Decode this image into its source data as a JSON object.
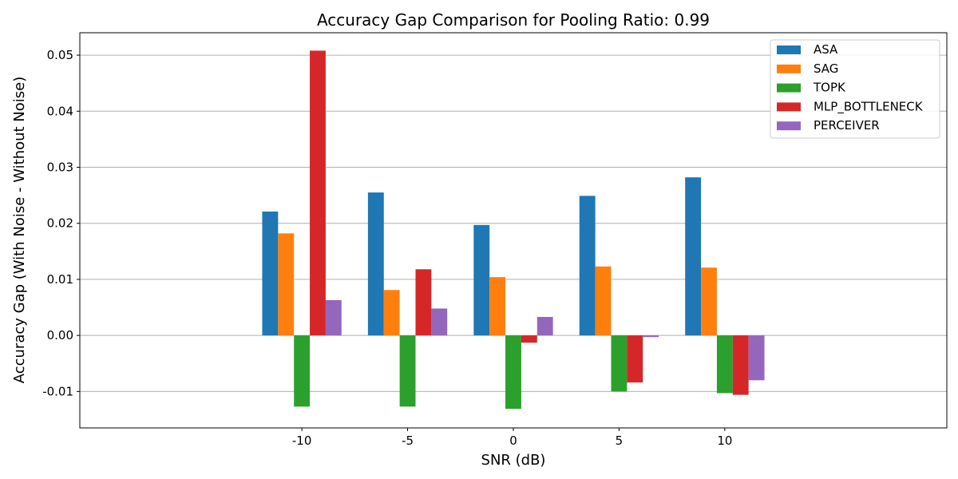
{
  "chart_data": {
    "type": "bar",
    "title": "Accuracy Gap Comparison for Pooling Ratio: 0.99",
    "xlabel": "SNR (dB)",
    "ylabel": "Accuracy Gap (With Noise - Without Noise)",
    "categories": [
      "-10",
      "-5",
      "0",
      "5",
      "10"
    ],
    "ylim": [
      -0.0165,
      0.054
    ],
    "yticks": [
      -0.01,
      0.0,
      0.01,
      0.02,
      0.03,
      0.04,
      0.05
    ],
    "ytick_labels": [
      "-0.01",
      "0.00",
      "0.01",
      "0.02",
      "0.03",
      "0.04",
      "0.05"
    ],
    "grid": "horizontal",
    "legend_position": "top-right",
    "series": [
      {
        "name": "ASA",
        "color": "#1f77b4",
        "values": [
          0.0221,
          0.0255,
          0.0197,
          0.0249,
          0.0282
        ]
      },
      {
        "name": "SAG",
        "color": "#ff7f0e",
        "values": [
          0.0182,
          0.0081,
          0.0104,
          0.0123,
          0.0121
        ]
      },
      {
        "name": "TOPK",
        "color": "#2ca02c",
        "values": [
          -0.0127,
          -0.0127,
          -0.0131,
          -0.01,
          -0.0103
        ]
      },
      {
        "name": "MLP_BOTTLENECK",
        "color": "#d62728",
        "values": [
          0.0508,
          0.0118,
          -0.0013,
          -0.0084,
          -0.0106
        ]
      },
      {
        "name": "PERCEIVER",
        "color": "#9467bd",
        "values": [
          0.0063,
          0.0048,
          0.0033,
          -0.0003,
          -0.008
        ]
      }
    ]
  }
}
